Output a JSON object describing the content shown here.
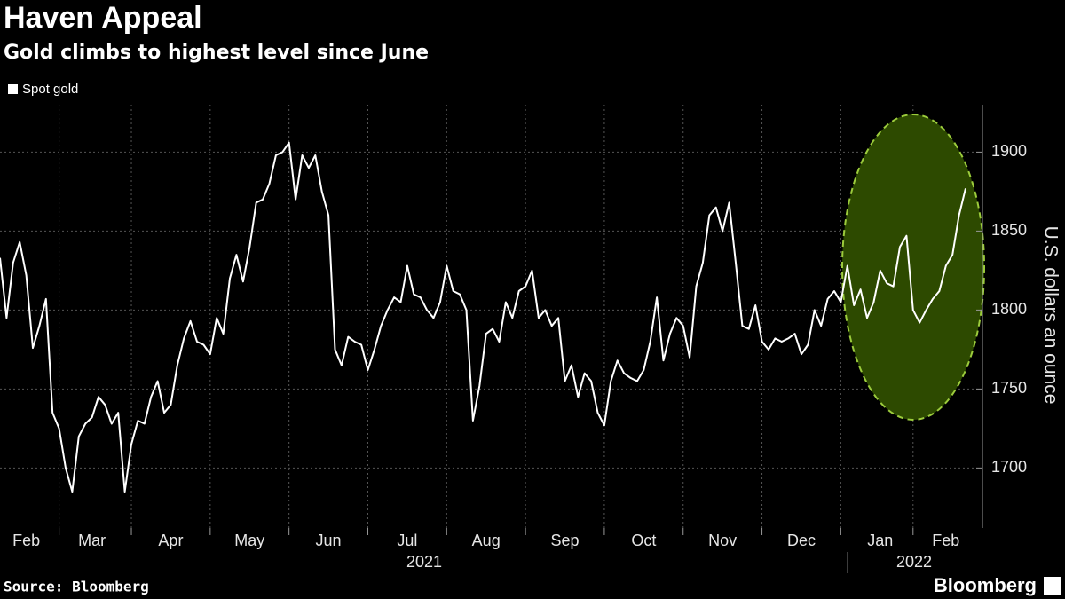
{
  "chart_data": {
    "type": "line",
    "title": "Haven Appeal",
    "subtitle": "Gold climbs to highest level since June",
    "y_axis_label": "U.S. dollars an ounce",
    "source": "Source: Bloomberg",
    "brand": "Bloomberg",
    "x_group_labels": [
      "2021",
      "2022"
    ],
    "categories": [
      null,
      null,
      null,
      null,
      "Feb",
      null,
      null,
      null,
      null,
      null,
      null,
      null,
      null,
      null,
      "Mar",
      null,
      null,
      null,
      null,
      null,
      null,
      null,
      null,
      null,
      null,
      null,
      "Apr",
      null,
      null,
      null,
      null,
      null,
      null,
      null,
      null,
      null,
      null,
      null,
      "May",
      null,
      null,
      null,
      null,
      null,
      null,
      null,
      null,
      null,
      null,
      null,
      "Jun",
      null,
      null,
      null,
      null,
      null,
      null,
      null,
      null,
      null,
      null,
      null,
      "Jul",
      null,
      null,
      null,
      null,
      null,
      null,
      null,
      null,
      null,
      null,
      null,
      "Aug",
      null,
      null,
      null,
      null,
      null,
      null,
      null,
      null,
      null,
      null,
      null,
      "Sep",
      null,
      null,
      null,
      null,
      null,
      null,
      null,
      null,
      null,
      null,
      null,
      "Oct",
      null,
      null,
      null,
      null,
      null,
      null,
      null,
      null,
      null,
      null,
      null,
      "Nov",
      null,
      null,
      null,
      null,
      null,
      null,
      null,
      null,
      null,
      null,
      null,
      "Dec",
      null,
      null,
      null,
      null,
      null,
      null,
      null,
      null,
      null,
      null,
      null,
      "Jan",
      null,
      null,
      null,
      null,
      null,
      null,
      null,
      null,
      null,
      "Feb",
      null,
      null,
      null
    ],
    "series": [
      {
        "name": "Spot gold",
        "color": "#ffffff",
        "values": [
          1833,
          1795,
          1830,
          1843,
          1822,
          1776,
          1790,
          1807,
          1735,
          1725,
          1700,
          1685,
          1720,
          1728,
          1732,
          1745,
          1740,
          1728,
          1735,
          1685,
          1715,
          1730,
          1728,
          1745,
          1755,
          1735,
          1740,
          1765,
          1782,
          1793,
          1780,
          1778,
          1772,
          1795,
          1785,
          1820,
          1835,
          1818,
          1840,
          1868,
          1870,
          1880,
          1898,
          1900,
          1906,
          1870,
          1898,
          1890,
          1898,
          1875,
          1860,
          1775,
          1765,
          1783,
          1780,
          1778,
          1762,
          1775,
          1790,
          1800,
          1808,
          1805,
          1828,
          1810,
          1808,
          1800,
          1795,
          1805,
          1828,
          1812,
          1810,
          1800,
          1730,
          1752,
          1785,
          1788,
          1780,
          1805,
          1795,
          1812,
          1815,
          1825,
          1795,
          1800,
          1790,
          1795,
          1755,
          1765,
          1745,
          1760,
          1755,
          1735,
          1727,
          1755,
          1768,
          1760,
          1757,
          1755,
          1762,
          1780,
          1808,
          1768,
          1785,
          1795,
          1790,
          1770,
          1815,
          1830,
          1860,
          1865,
          1850,
          1868,
          1830,
          1790,
          1788,
          1803,
          1780,
          1775,
          1782,
          1780,
          1782,
          1785,
          1772,
          1778,
          1800,
          1790,
          1807,
          1812,
          1805,
          1828,
          1803,
          1813,
          1795,
          1805,
          1825,
          1817,
          1815,
          1840,
          1847,
          1800,
          1792,
          1800,
          1807,
          1812,
          1828,
          1835,
          1860,
          1877
        ]
      }
    ],
    "ylim": [
      1662,
      1930
    ],
    "yticks": [
      1700,
      1750,
      1800,
      1850,
      1900
    ],
    "grid": true
  }
}
